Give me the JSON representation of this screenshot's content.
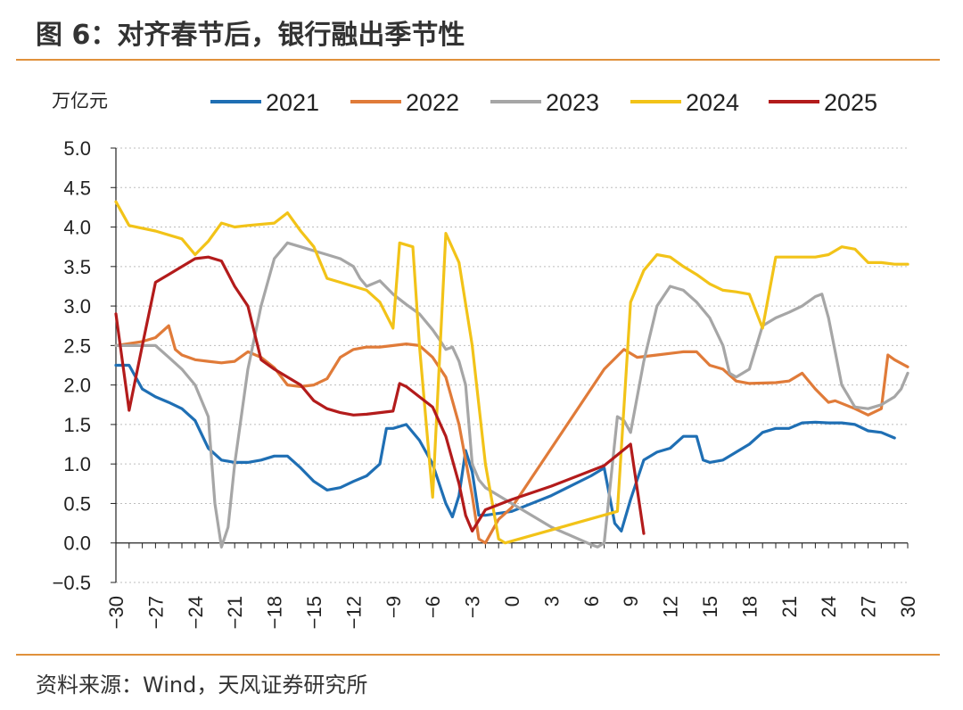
{
  "title": "图 6：对齐春节后，银行融出季节性",
  "source": "资料来源：Wind，天风证券研究所",
  "chart_data": {
    "type": "line",
    "unit_label": "万亿元",
    "ylim": [
      -0.5,
      5.0
    ],
    "yticks": [
      -0.5,
      0.0,
      0.5,
      1.0,
      1.5,
      2.0,
      2.5,
      3.0,
      3.5,
      4.0,
      4.5,
      5.0
    ],
    "xlim": [
      -30,
      30
    ],
    "xticks": [
      -30,
      -27,
      -24,
      -21,
      -18,
      -15,
      -12,
      -9,
      -6,
      -3,
      0,
      3,
      6,
      9,
      12,
      15,
      18,
      21,
      24,
      27,
      30
    ],
    "grid": "horizontal dotted",
    "legend_position": "top",
    "series": [
      {
        "name": "2021",
        "color": "#1F6FB4",
        "points": [
          [
            -30,
            2.25
          ],
          [
            -29,
            2.25
          ],
          [
            -28,
            1.95
          ],
          [
            -27,
            1.85
          ],
          [
            -26,
            1.78
          ],
          [
            -25,
            1.7
          ],
          [
            -24,
            1.55
          ],
          [
            -23,
            1.2
          ],
          [
            -22,
            1.05
          ],
          [
            -21,
            1.02
          ],
          [
            -20,
            1.02
          ],
          [
            -19,
            1.05
          ],
          [
            -18,
            1.1
          ],
          [
            -17,
            1.1
          ],
          [
            -16,
            0.95
          ],
          [
            -15,
            0.78
          ],
          [
            -14,
            0.67
          ],
          [
            -13,
            0.7
          ],
          [
            -12,
            0.78
          ],
          [
            -11,
            0.85
          ],
          [
            -10,
            1.0
          ],
          [
            -9.5,
            1.45
          ],
          [
            -9,
            1.45
          ],
          [
            -8,
            1.5
          ],
          [
            -7,
            1.3
          ],
          [
            -6,
            1.0
          ],
          [
            -5,
            0.5
          ],
          [
            -4.5,
            0.33
          ],
          [
            -4,
            0.6
          ],
          [
            -3.5,
            1.17
          ],
          [
            -3,
            0.9
          ],
          [
            -2.5,
            0.35
          ],
          [
            -2,
            0.35
          ],
          [
            0,
            0.4
          ],
          [
            3,
            0.6
          ],
          [
            6,
            0.85
          ],
          [
            7,
            0.95
          ],
          [
            7.8,
            0.25
          ],
          [
            8.3,
            0.15
          ],
          [
            9,
            0.55
          ],
          [
            10,
            1.05
          ],
          [
            11,
            1.15
          ],
          [
            12,
            1.2
          ],
          [
            13,
            1.35
          ],
          [
            14,
            1.35
          ],
          [
            14.5,
            1.05
          ],
          [
            15,
            1.02
          ],
          [
            16,
            1.05
          ],
          [
            17,
            1.15
          ],
          [
            18,
            1.25
          ],
          [
            19,
            1.4
          ],
          [
            20,
            1.45
          ],
          [
            21,
            1.45
          ],
          [
            22,
            1.52
          ],
          [
            23,
            1.53
          ],
          [
            24,
            1.52
          ],
          [
            25,
            1.52
          ],
          [
            26,
            1.5
          ],
          [
            27,
            1.42
          ],
          [
            28,
            1.4
          ],
          [
            29,
            1.33
          ]
        ]
      },
      {
        "name": "2022",
        "color": "#E07B39",
        "points": [
          [
            -30,
            2.5
          ],
          [
            -28,
            2.55
          ],
          [
            -27,
            2.6
          ],
          [
            -26,
            2.75
          ],
          [
            -25.5,
            2.45
          ],
          [
            -25,
            2.38
          ],
          [
            -24,
            2.32
          ],
          [
            -23,
            2.3
          ],
          [
            -22,
            2.28
          ],
          [
            -21,
            2.3
          ],
          [
            -20,
            2.42
          ],
          [
            -19,
            2.35
          ],
          [
            -18,
            2.22
          ],
          [
            -17,
            2.0
          ],
          [
            -16,
            1.98
          ],
          [
            -15,
            2.0
          ],
          [
            -14,
            2.08
          ],
          [
            -13,
            2.35
          ],
          [
            -12,
            2.45
          ],
          [
            -11,
            2.48
          ],
          [
            -10,
            2.48
          ],
          [
            -9,
            2.5
          ],
          [
            -8,
            2.52
          ],
          [
            -7,
            2.5
          ],
          [
            -6,
            2.35
          ],
          [
            -5,
            2.1
          ],
          [
            -4,
            1.5
          ],
          [
            -3,
            0.6
          ],
          [
            -2.5,
            0.05
          ],
          [
            -2,
            0.0
          ],
          [
            -1,
            0.3
          ],
          [
            0,
            0.45
          ],
          [
            7,
            2.2
          ],
          [
            8.5,
            2.45
          ],
          [
            9.5,
            2.35
          ],
          [
            11,
            2.38
          ],
          [
            13,
            2.42
          ],
          [
            14,
            2.42
          ],
          [
            15,
            2.25
          ],
          [
            16,
            2.2
          ],
          [
            17,
            2.05
          ],
          [
            18,
            2.02
          ],
          [
            20,
            2.03
          ],
          [
            21,
            2.05
          ],
          [
            22,
            2.15
          ],
          [
            23,
            1.95
          ],
          [
            24,
            1.78
          ],
          [
            24.5,
            1.8
          ],
          [
            26,
            1.7
          ],
          [
            27,
            1.62
          ],
          [
            28,
            1.7
          ],
          [
            28.5,
            2.38
          ],
          [
            29,
            2.32
          ],
          [
            30,
            2.23
          ]
        ]
      },
      {
        "name": "2023",
        "color": "#A6A6A6",
        "points": [
          [
            -30,
            2.5
          ],
          [
            -27,
            2.5
          ],
          [
            -26,
            2.35
          ],
          [
            -25,
            2.2
          ],
          [
            -24,
            2.0
          ],
          [
            -23,
            1.6
          ],
          [
            -22.5,
            0.5
          ],
          [
            -22,
            -0.05
          ],
          [
            -21.5,
            0.2
          ],
          [
            -21,
            1.0
          ],
          [
            -20,
            2.2
          ],
          [
            -19,
            3.0
          ],
          [
            -18,
            3.6
          ],
          [
            -17,
            3.8
          ],
          [
            -16,
            3.75
          ],
          [
            -15,
            3.7
          ],
          [
            -14,
            3.65
          ],
          [
            -13,
            3.6
          ],
          [
            -12,
            3.5
          ],
          [
            -11.5,
            3.35
          ],
          [
            -11,
            3.25
          ],
          [
            -10,
            3.32
          ],
          [
            -9,
            3.15
          ],
          [
            -8,
            3.02
          ],
          [
            -7,
            2.9
          ],
          [
            -6,
            2.7
          ],
          [
            -5.5,
            2.58
          ],
          [
            -5,
            2.45
          ],
          [
            -4.5,
            2.48
          ],
          [
            -4,
            2.3
          ],
          [
            -3.5,
            2.0
          ],
          [
            -3,
            1.0
          ],
          [
            -2.5,
            0.8
          ],
          [
            -2,
            0.7
          ],
          [
            0,
            0.5
          ],
          [
            3,
            0.2
          ],
          [
            6,
            -0.02
          ],
          [
            6.5,
            -0.05
          ],
          [
            7,
            0.0
          ],
          [
            7.5,
            0.8
          ],
          [
            8,
            1.6
          ],
          [
            8.5,
            1.55
          ],
          [
            9,
            1.4
          ],
          [
            10,
            2.3
          ],
          [
            11,
            3.0
          ],
          [
            12,
            3.25
          ],
          [
            13,
            3.2
          ],
          [
            14,
            3.05
          ],
          [
            15,
            2.85
          ],
          [
            16,
            2.5
          ],
          [
            16.5,
            2.15
          ],
          [
            17,
            2.1
          ],
          [
            18,
            2.2
          ],
          [
            19,
            2.75
          ],
          [
            20,
            2.85
          ],
          [
            21,
            2.92
          ],
          [
            22,
            3.0
          ],
          [
            23,
            3.12
          ],
          [
            23.5,
            3.15
          ],
          [
            24,
            2.85
          ],
          [
            25,
            2.0
          ],
          [
            26,
            1.72
          ],
          [
            27,
            1.7
          ],
          [
            28,
            1.75
          ],
          [
            29,
            1.85
          ],
          [
            29.5,
            1.95
          ],
          [
            30,
            2.15
          ]
        ]
      },
      {
        "name": "2024",
        "color": "#F2C318",
        "points": [
          [
            -30,
            4.32
          ],
          [
            -29,
            4.02
          ],
          [
            -27,
            3.95
          ],
          [
            -25,
            3.85
          ],
          [
            -24,
            3.65
          ],
          [
            -23,
            3.82
          ],
          [
            -22,
            4.05
          ],
          [
            -21,
            4.0
          ],
          [
            -20,
            4.02
          ],
          [
            -18,
            4.05
          ],
          [
            -17,
            4.18
          ],
          [
            -16,
            3.95
          ],
          [
            -15,
            3.75
          ],
          [
            -14,
            3.35
          ],
          [
            -13,
            3.3
          ],
          [
            -12,
            3.25
          ],
          [
            -11,
            3.2
          ],
          [
            -10,
            3.05
          ],
          [
            -9,
            2.72
          ],
          [
            -8.5,
            3.8
          ],
          [
            -7.5,
            3.75
          ],
          [
            -7,
            2.5
          ],
          [
            -6,
            0.58
          ],
          [
            -5,
            3.92
          ],
          [
            -4,
            3.55
          ],
          [
            -3,
            2.5
          ],
          [
            -2,
            1.0
          ],
          [
            -1,
            0.05
          ],
          [
            -0.5,
            0.0
          ],
          [
            8,
            0.4
          ],
          [
            9,
            3.05
          ],
          [
            10,
            3.45
          ],
          [
            11,
            3.65
          ],
          [
            12,
            3.62
          ],
          [
            13,
            3.5
          ],
          [
            14,
            3.4
          ],
          [
            15,
            3.28
          ],
          [
            16,
            3.2
          ],
          [
            17,
            3.18
          ],
          [
            18,
            3.15
          ],
          [
            19,
            2.72
          ],
          [
            20,
            3.62
          ],
          [
            21,
            3.62
          ],
          [
            22,
            3.62
          ],
          [
            23,
            3.62
          ],
          [
            24,
            3.65
          ],
          [
            25,
            3.75
          ],
          [
            26,
            3.72
          ],
          [
            27,
            3.55
          ],
          [
            28,
            3.55
          ],
          [
            29,
            3.53
          ],
          [
            30,
            3.53
          ]
        ]
      },
      {
        "name": "2025",
        "color": "#B31B1B",
        "points": [
          [
            -30,
            2.9
          ],
          [
            -29,
            1.68
          ],
          [
            -28,
            2.5
          ],
          [
            -27,
            3.3
          ],
          [
            -26,
            3.4
          ],
          [
            -24,
            3.6
          ],
          [
            -23,
            3.62
          ],
          [
            -22,
            3.57
          ],
          [
            -21,
            3.25
          ],
          [
            -20,
            3.0
          ],
          [
            -19,
            2.32
          ],
          [
            -18,
            2.2
          ],
          [
            -17,
            2.1
          ],
          [
            -16,
            2.0
          ],
          [
            -15,
            1.8
          ],
          [
            -14,
            1.7
          ],
          [
            -13,
            1.65
          ],
          [
            -12,
            1.62
          ],
          [
            -11,
            1.63
          ],
          [
            -10,
            1.65
          ],
          [
            -9,
            1.67
          ],
          [
            -8.5,
            2.02
          ],
          [
            -8,
            1.98
          ],
          [
            -7,
            1.85
          ],
          [
            -6,
            1.72
          ],
          [
            -5,
            1.35
          ],
          [
            -4,
            0.75
          ],
          [
            -3.5,
            0.35
          ],
          [
            -3,
            0.15
          ],
          [
            -2,
            0.42
          ],
          [
            0,
            0.55
          ],
          [
            3,
            0.72
          ],
          [
            7,
            0.98
          ],
          [
            9,
            1.25
          ],
          [
            10,
            0.12
          ]
        ]
      }
    ]
  }
}
